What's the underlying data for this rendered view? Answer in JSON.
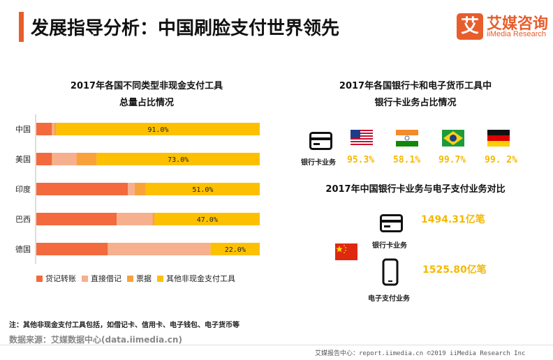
{
  "header": {
    "title": "发展指导分析：中国刷脸支付世界领先",
    "logo_mark": "艾",
    "logo_cn": "艾媒咨询",
    "logo_en": "iiMedia Research"
  },
  "left_chart": {
    "title_line1": "2017年各国不同类型非现金支付工具",
    "title_line2": "总量占比情况"
  },
  "right_top": {
    "title_line1": "2017年各国银行卡和电子货币工具中",
    "title_line2": "银行卡业务占比情况",
    "row_label": "银行卡业务",
    "values": [
      "95.3%",
      "58.1%",
      "99.7%",
      "99. 2%"
    ]
  },
  "right_bottom": {
    "title": "2017年中国银行卡业务与电子支付业务对比",
    "bank_label": "银行卡业务",
    "bank_value": "1494.31亿笔",
    "epay_label": "电子支付业务",
    "epay_value": "1525.80亿笔"
  },
  "chart_data": [
    {
      "type": "bar",
      "orientation": "horizontal",
      "stacked": true,
      "normalized": true,
      "title": "2017年各国不同类型非现金支付工具总量占比情况",
      "categories": [
        "中国",
        "美国",
        "印度",
        "巴西",
        "德国"
      ],
      "series": [
        {
          "name": "贷记转账",
          "color": "#f26a3d",
          "values": [
            7.0,
            7.0,
            41.0,
            36.0,
            32.0
          ]
        },
        {
          "name": "直接借记",
          "color": "#f6b08e",
          "values": [
            1.0,
            11.0,
            3.0,
            16.0,
            46.0
          ]
        },
        {
          "name": "票据",
          "color": "#f9a23c",
          "values": [
            1.0,
            9.0,
            5.0,
            1.0,
            0.0
          ]
        },
        {
          "name": "其他非现金支付工具",
          "color": "#fdc000",
          "values": [
            91.0,
            73.0,
            51.0,
            47.0,
            22.0
          ]
        }
      ],
      "data_labels": [
        "91.0%",
        "73.0%",
        "51.0%",
        "47.0%",
        "22.0%"
      ],
      "xlim": [
        0,
        100
      ],
      "legend": "bottom",
      "grid": false
    }
  ],
  "footer": {
    "note": "注：其他非现金支付工具包括，如借记卡、信用卡、电子钱包、电子货币等",
    "source": "数据来源：艾媒数据中心(data.iimedia.cn)",
    "copyright": "艾媒报告中心：report.iimedia.cn  ©2019  iiMedia Research  Inc"
  }
}
